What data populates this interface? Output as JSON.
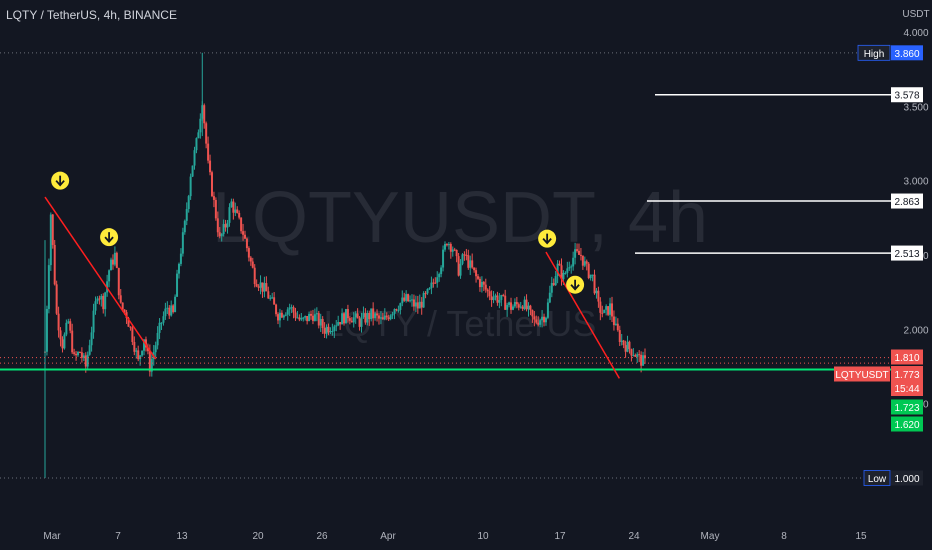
{
  "header": {
    "title": "LQTY / TetherUS, 4h, BINANCE"
  },
  "watermark": {
    "symbol": "LQTYUSDT, 4h",
    "name": "LQTY / TetherUS"
  },
  "colors": {
    "bg": "#131722",
    "up": "#26a69a",
    "down": "#ef5350",
    "trend": "#ff1f1f",
    "support": "#00e676",
    "level": "#ffffff",
    "marker": "#ffeb3b"
  },
  "chart_data": {
    "type": "candlestick",
    "symbol": "LQTYUSDT",
    "exchange": "BINANCE",
    "timeframe": "4h",
    "y_axis": {
      "unit": "USDT",
      "ticks": [
        "4.000",
        "3.500",
        "3.000",
        "2.500",
        "2.000",
        "1.500"
      ],
      "range": [
        0.9,
        4.1
      ]
    },
    "x_axis": {
      "ticks": [
        "Mar",
        "7",
        "13",
        "20",
        "26",
        "Apr",
        "10",
        "17",
        "24",
        "May",
        "8",
        "15"
      ]
    },
    "price_path": [
      [
        0.0,
        1.85
      ],
      [
        0.5,
        2.78
      ],
      [
        1.0,
        2.1
      ],
      [
        1.5,
        1.9
      ],
      [
        2.0,
        2.05
      ],
      [
        2.5,
        1.8
      ],
      [
        3.0,
        1.85
      ],
      [
        3.5,
        1.75
      ],
      [
        4.0,
        2.0
      ],
      [
        4.5,
        2.25
      ],
      [
        5.0,
        2.18
      ],
      [
        5.5,
        2.4
      ],
      [
        6.0,
        2.5
      ],
      [
        6.5,
        2.15
      ],
      [
        7.0,
        2.1
      ],
      [
        7.5,
        1.95
      ],
      [
        8.0,
        1.78
      ],
      [
        8.5,
        1.95
      ],
      [
        9.0,
        1.75
      ],
      [
        9.5,
        1.9
      ],
      [
        10.0,
        2.05
      ],
      [
        10.5,
        2.15
      ],
      [
        11.0,
        2.1
      ],
      [
        11.5,
        2.45
      ],
      [
        12.0,
        2.7
      ],
      [
        12.5,
        3.05
      ],
      [
        13.0,
        3.25
      ],
      [
        13.5,
        3.55
      ],
      [
        14.0,
        3.1
      ],
      [
        14.5,
        2.85
      ],
      [
        15.0,
        2.6
      ],
      [
        15.5,
        2.7
      ],
      [
        16.0,
        2.85
      ],
      [
        16.5,
        2.75
      ],
      [
        17.0,
        2.65
      ],
      [
        17.5,
        2.5
      ],
      [
        18.0,
        2.35
      ],
      [
        19.0,
        2.25
      ],
      [
        20.0,
        2.1
      ],
      [
        21.0,
        2.15
      ],
      [
        22.0,
        2.05
      ],
      [
        23.0,
        2.1
      ],
      [
        24.0,
        2.0
      ],
      [
        25.0,
        2.05
      ],
      [
        26.0,
        2.1
      ],
      [
        27.0,
        2.05
      ],
      [
        28.0,
        2.1
      ],
      [
        29.0,
        2.05
      ],
      [
        30.0,
        2.15
      ],
      [
        31.0,
        2.2
      ],
      [
        32.0,
        2.15
      ],
      [
        33.0,
        2.25
      ],
      [
        34.0,
        2.45
      ],
      [
        34.5,
        2.6
      ],
      [
        35.0,
        2.55
      ],
      [
        35.5,
        2.4
      ],
      [
        36.0,
        2.5
      ],
      [
        37.0,
        2.35
      ],
      [
        38.0,
        2.25
      ],
      [
        39.0,
        2.2
      ],
      [
        40.0,
        2.15
      ],
      [
        41.0,
        2.18
      ],
      [
        42.0,
        2.05
      ],
      [
        43.0,
        2.1
      ],
      [
        43.5,
        2.3
      ],
      [
        44.0,
        2.42
      ],
      [
        44.5,
        2.35
      ],
      [
        45.0,
        2.45
      ],
      [
        45.5,
        2.5
      ],
      [
        46.0,
        2.5
      ],
      [
        46.5,
        2.4
      ],
      [
        47.0,
        2.35
      ],
      [
        47.5,
        2.15
      ],
      [
        48.0,
        2.1
      ],
      [
        48.5,
        2.15
      ],
      [
        49.0,
        2.0
      ],
      [
        49.5,
        1.92
      ],
      [
        50.0,
        1.88
      ],
      [
        50.5,
        1.85
      ],
      [
        51.0,
        1.8
      ],
      [
        51.5,
        1.773
      ]
    ],
    "x_day_range": [
      0,
      51.5
    ],
    "price_levels": [
      {
        "label": "High",
        "value": "3.860"
      },
      {
        "value": "3.578"
      },
      {
        "value": "2.863"
      },
      {
        "value": "2.513"
      },
      {
        "value": "1.810"
      },
      {
        "label": "LQTYUSDT",
        "value": "1.773",
        "countdown": "15:44"
      },
      {
        "value": "1.723"
      },
      {
        "value": "1.620"
      },
      {
        "label": "Low",
        "value": "1.000"
      }
    ],
    "annotations": {
      "downtrend_lines": [
        {
          "from": [
            0.0,
            2.89
          ],
          "to": [
            9.5,
            1.8
          ]
        },
        {
          "from": [
            43.0,
            2.52
          ],
          "to": [
            49.3,
            1.67
          ]
        }
      ],
      "support_line": 1.73,
      "arrow_markers": [
        [
          1.3,
          3.0
        ],
        [
          5.5,
          2.62
        ],
        [
          43.1,
          2.61
        ],
        [
          45.5,
          2.3
        ]
      ]
    }
  }
}
